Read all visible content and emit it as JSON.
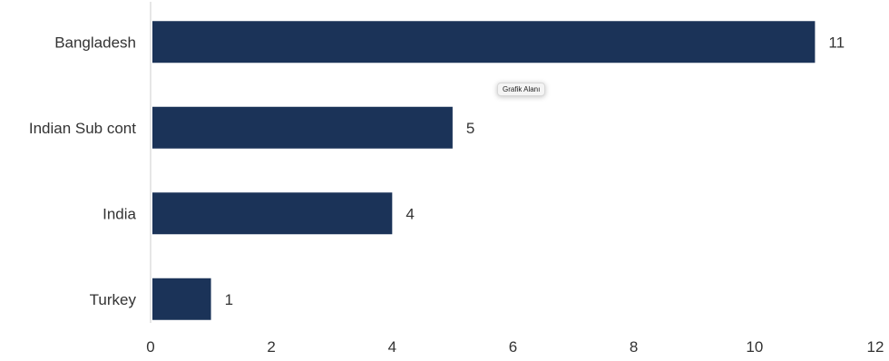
{
  "chart_data": {
    "type": "bar",
    "orientation": "horizontal",
    "categories": [
      "Bangladesh",
      "Indian Sub cont",
      "India",
      "Turkey"
    ],
    "values": [
      11,
      5,
      4,
      1
    ],
    "xlim": [
      0,
      12
    ],
    "xticks": [
      "0",
      "2",
      "4",
      "6",
      "8",
      "10",
      "12"
    ],
    "grid": false,
    "bar_color": "#1b3358"
  },
  "tooltip": {
    "label": "Grafik Alanı"
  }
}
